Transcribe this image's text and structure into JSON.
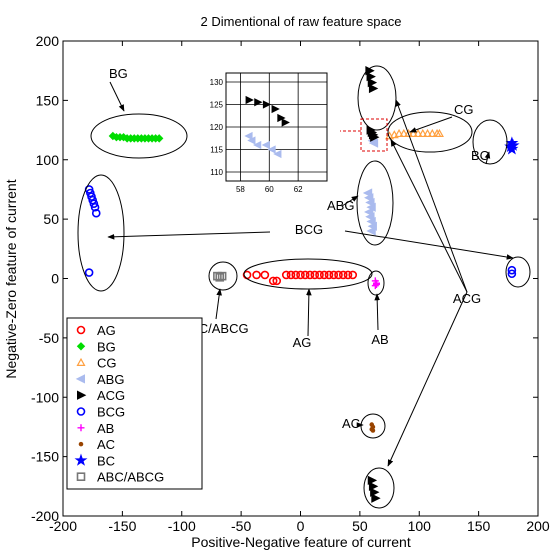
{
  "chart_data": {
    "type": "scatter",
    "title": "2 Dimentional of raw feature space",
    "xlabel": "Positive-Negative feature of current",
    "ylabel": "Negative-Zero feature of current",
    "xlim": [
      -200,
      200
    ],
    "ylim": [
      -200,
      200
    ],
    "xticks": [
      -200,
      -150,
      -100,
      -50,
      0,
      50,
      100,
      150,
      200
    ],
    "yticks": [
      -200,
      -150,
      -100,
      -50,
      0,
      50,
      100,
      150,
      200
    ],
    "grid": false,
    "legend_position": "bottom-left",
    "series": [
      {
        "name": "AG",
        "color": "#ff0000",
        "marker": "circle-open",
        "x": [
          -45,
          -37,
          -30,
          -23,
          -20,
          -12,
          -8,
          -4,
          0,
          4,
          8,
          12,
          16,
          20,
          24,
          28,
          32,
          36,
          40,
          44
        ],
        "y": [
          3,
          3,
          3,
          -2,
          -2,
          3,
          3,
          3,
          3,
          3,
          3,
          3,
          3,
          3,
          3,
          3,
          3,
          3,
          3,
          3
        ]
      },
      {
        "name": "BG",
        "color": "#00dd00",
        "marker": "diamond-filled",
        "x": [
          -158,
          -155,
          -152,
          -149,
          -146,
          -143,
          -140,
          -137,
          -134,
          -131,
          -128,
          -125,
          -122,
          -119
        ],
        "y": [
          120,
          119,
          119,
          119,
          118,
          118,
          118,
          118,
          118,
          118,
          118,
          118,
          118,
          118
        ]
      },
      {
        "name": "CG",
        "color": "#ffa040",
        "marker": "triangle-up-open",
        "x": [
          75,
          79,
          83,
          87,
          91,
          95,
          99,
          103,
          107,
          111,
          115,
          117
        ],
        "y": [
          120,
          121,
          122,
          122,
          122,
          122,
          122,
          122,
          122,
          122,
          122,
          122
        ]
      },
      {
        "name": "ABG",
        "color": "#aabbee",
        "marker": "triangle-left-filled",
        "x": [
          57,
          58,
          59,
          60,
          58,
          59,
          60,
          61,
          60,
          61,
          62
        ],
        "y": [
          72,
          68,
          64,
          60,
          56,
          52,
          48,
          44,
          40,
          116,
          114
        ]
      },
      {
        "name": "ACG",
        "color": "#000000",
        "marker": "triangle-right-filled",
        "x": [
          59,
          60,
          61,
          62,
          58,
          59,
          60,
          61,
          60,
          61,
          62,
          63
        ],
        "y": [
          125,
          123,
          121,
          119,
          175,
          170,
          165,
          160,
          -170,
          -175,
          -180,
          -185
        ]
      },
      {
        "name": "BCG",
        "color": "#0000ff",
        "marker": "circle-open",
        "x": [
          -178,
          -177,
          -176,
          -175,
          -174,
          -173,
          -172,
          -178,
          178,
          178
        ],
        "y": [
          75,
          72,
          69,
          66,
          63,
          60,
          55,
          5,
          7,
          4
        ]
      },
      {
        "name": "AB",
        "color": "#ff00ff",
        "marker": "plus",
        "x": [
          63,
          64,
          63,
          64
        ],
        "y": [
          -2,
          -4,
          -6,
          -5
        ]
      },
      {
        "name": "AC",
        "color": "#994400",
        "marker": "dot",
        "x": [
          60,
          61,
          60,
          61
        ],
        "y": [
          -123,
          -125,
          -127,
          -128
        ]
      },
      {
        "name": "BC",
        "color": "#0000ff",
        "marker": "star",
        "x": [
          177,
          178,
          179,
          178
        ],
        "y": [
          111,
          114,
          112,
          109
        ]
      },
      {
        "name": "ABC/ABCG",
        "color": "#777777",
        "marker": "square-open",
        "x": [
          -70,
          -68,
          -66
        ],
        "y": [
          2,
          1,
          2
        ]
      }
    ],
    "annotations": [
      "BG",
      "CG",
      "BC",
      "ABG",
      "BCG",
      "ABC/ABCG",
      "AG",
      "AB",
      "ACG",
      "AC"
    ],
    "inset": {
      "xlim": [
        57,
        64
      ],
      "ylim": [
        108,
        132
      ],
      "xticks": [
        58,
        60,
        62
      ],
      "yticks": [
        110,
        115,
        120,
        125,
        130
      ],
      "grid": true,
      "series": [
        {
          "name": "ACG",
          "color": "#000000",
          "x": [
            58.6,
            59.2,
            59.8,
            60.4,
            60.8,
            61.1
          ],
          "y": [
            126,
            125.5,
            125,
            124,
            122,
            121
          ]
        },
        {
          "name": "ABG",
          "color": "#aabbee",
          "x": [
            58.6,
            58.8,
            59.2,
            59.8,
            60.2,
            60.6
          ],
          "y": [
            118,
            117,
            116,
            116,
            115,
            114
          ]
        }
      ]
    }
  }
}
